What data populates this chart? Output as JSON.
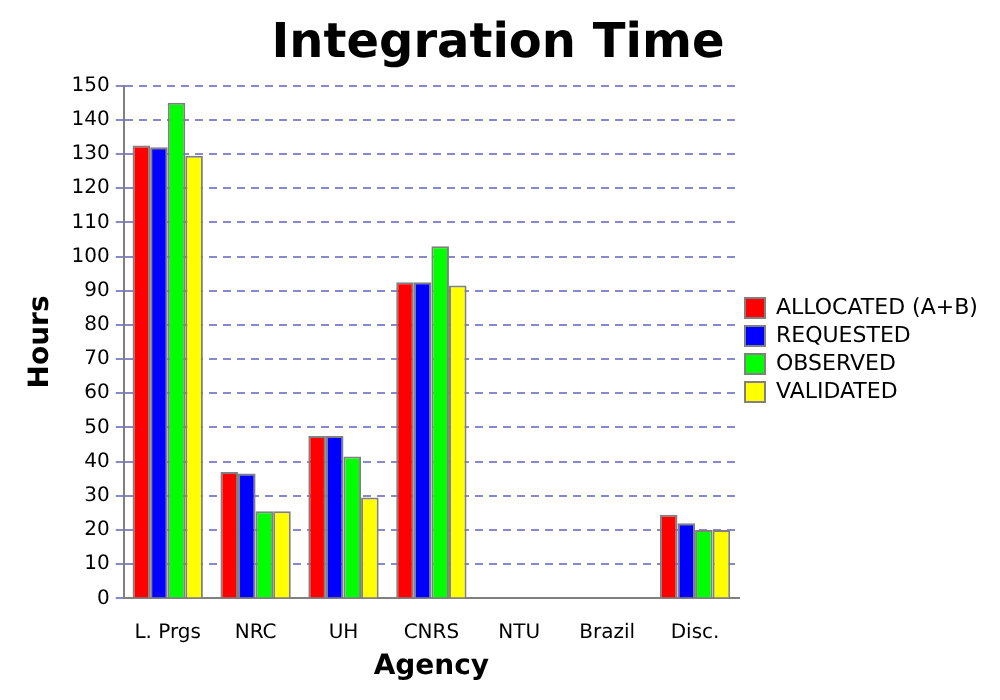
{
  "chart_data": {
    "type": "bar",
    "title": "Integration Time",
    "xlabel": "Agency",
    "ylabel": "Hours",
    "categories": [
      "L. Prgs",
      "NRC",
      "UH",
      "CNRS",
      "NTU",
      "Brazil",
      "Disc."
    ],
    "series": [
      {
        "name": "ALLOCATED (A+B)",
        "color": "#ff0000",
        "values": [
          132.5,
          37,
          47.5,
          92.5,
          0,
          0,
          24.5
        ]
      },
      {
        "name": "REQUESTED",
        "color": "#0000ff",
        "values": [
          132,
          36.5,
          47.5,
          92.5,
          0,
          0,
          22
        ]
      },
      {
        "name": "OBSERVED",
        "color": "#00ff00",
        "values": [
          145,
          25.5,
          41.5,
          103,
          0,
          0,
          20
        ]
      },
      {
        "name": "VALIDATED",
        "color": "#ffff00",
        "values": [
          129.5,
          25.5,
          29.5,
          91.5,
          0,
          0,
          20
        ]
      }
    ],
    "ylim": [
      0,
      150
    ],
    "yticks": [
      0,
      10,
      20,
      30,
      40,
      50,
      60,
      70,
      80,
      90,
      100,
      110,
      120,
      130,
      140,
      150
    ],
    "grid": "y",
    "legend": "right"
  }
}
